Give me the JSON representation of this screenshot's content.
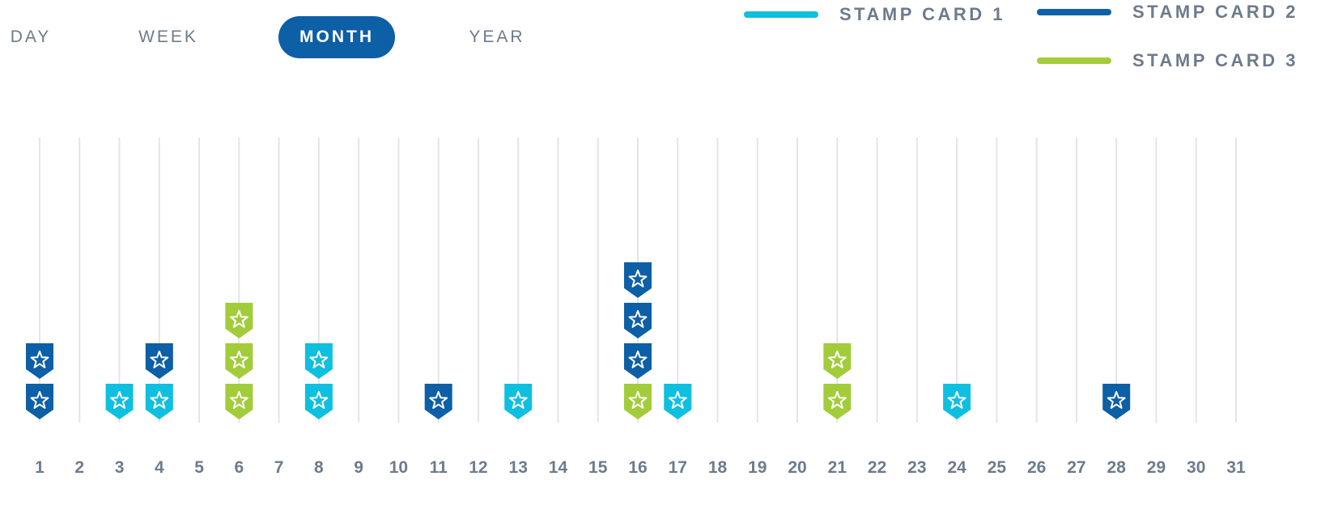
{
  "tabs": [
    {
      "label": "DAY",
      "active": false
    },
    {
      "label": "WEEK",
      "active": false
    },
    {
      "label": "MONTH",
      "active": true
    },
    {
      "label": "YEAR",
      "active": false
    }
  ],
  "legend": [
    {
      "label": "STAMP CARD 1",
      "color": "#0fbfe0"
    },
    {
      "label": "STAMP CARD 2",
      "color": "#0d5fa6"
    },
    {
      "label": "STAMP CARD 3",
      "color": "#a3cc3a"
    }
  ],
  "chart_data": {
    "type": "scatter",
    "x_label": "",
    "y_label": "",
    "categories": [
      "1",
      "2",
      "3",
      "4",
      "5",
      "6",
      "7",
      "8",
      "9",
      "10",
      "11",
      "12",
      "13",
      "14",
      "15",
      "16",
      "17",
      "18",
      "19",
      "20",
      "21",
      "22",
      "23",
      "24",
      "25",
      "26",
      "27",
      "28",
      "29",
      "30",
      "31"
    ],
    "series": [
      {
        "name": "STAMP CARD 1",
        "color": "#0fbfe0",
        "stamps_per_day": {
          "3": 1,
          "4": 1,
          "8": 2,
          "13": 1,
          "17": 1,
          "24": 1
        }
      },
      {
        "name": "STAMP CARD 2",
        "color": "#0d5fa6",
        "stamps_per_day": {
          "1": 2,
          "4": 1,
          "11": 1,
          "16": 3,
          "28": 1
        }
      },
      {
        "name": "STAMP CARD 3",
        "color": "#a3cc3a",
        "stamps_per_day": {
          "6": 3,
          "16": 1,
          "21": 2
        }
      }
    ],
    "stacks": [
      {
        "day": 1,
        "stamps": [
          "STAMP CARD 2",
          "STAMP CARD 2"
        ]
      },
      {
        "day": 3,
        "stamps": [
          "STAMP CARD 1"
        ]
      },
      {
        "day": 4,
        "stamps": [
          "STAMP CARD 1",
          "STAMP CARD 2"
        ]
      },
      {
        "day": 6,
        "stamps": [
          "STAMP CARD 3",
          "STAMP CARD 3",
          "STAMP CARD 3"
        ]
      },
      {
        "day": 8,
        "stamps": [
          "STAMP CARD 1",
          "STAMP CARD 1"
        ]
      },
      {
        "day": 11,
        "stamps": [
          "STAMP CARD 2"
        ]
      },
      {
        "day": 13,
        "stamps": [
          "STAMP CARD 1"
        ]
      },
      {
        "day": 16,
        "stamps": [
          "STAMP CARD 3",
          "STAMP CARD 2",
          "STAMP CARD 2",
          "STAMP CARD 2"
        ]
      },
      {
        "day": 17,
        "stamps": [
          "STAMP CARD 1"
        ]
      },
      {
        "day": 21,
        "stamps": [
          "STAMP CARD 3",
          "STAMP CARD 3"
        ]
      },
      {
        "day": 24,
        "stamps": [
          "STAMP CARD 1"
        ]
      },
      {
        "day": 28,
        "stamps": [
          "STAMP CARD 2"
        ]
      }
    ],
    "marker_icon": "star-shield-icon",
    "grid": true,
    "legend_position": "top-right"
  }
}
